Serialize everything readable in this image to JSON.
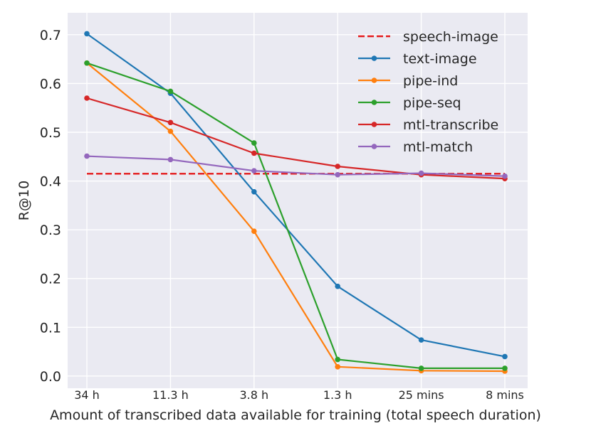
{
  "chart_data": {
    "type": "line",
    "title": "",
    "xlabel": "Amount of transcribed data available for training (total speech duration)",
    "ylabel": "R@10",
    "categories": [
      "34 h",
      "11.3 h",
      "3.8 h",
      "1.3 h",
      "25 mins",
      "8 mins"
    ],
    "ylim": [
      -0.025,
      0.745
    ],
    "yticks": [
      "0.0",
      "0.1",
      "0.2",
      "0.3",
      "0.4",
      "0.5",
      "0.6",
      "0.7"
    ],
    "grid": true,
    "legend_position": "top-right",
    "series": [
      {
        "name": "speech-image",
        "color": "#e41a1c",
        "dashed": true,
        "markers": false,
        "values": [
          0.415,
          0.415,
          0.415,
          0.415,
          0.415,
          0.415
        ]
      },
      {
        "name": "text-image",
        "color": "#1f77b4",
        "dashed": false,
        "markers": true,
        "values": [
          0.702,
          0.58,
          0.378,
          0.184,
          0.074,
          0.04
        ]
      },
      {
        "name": "pipe-ind",
        "color": "#ff7f0e",
        "dashed": false,
        "markers": true,
        "values": [
          0.642,
          0.502,
          0.297,
          0.019,
          0.011,
          0.01
        ]
      },
      {
        "name": "pipe-seq",
        "color": "#2ca02c",
        "dashed": false,
        "markers": true,
        "values": [
          0.642,
          0.584,
          0.478,
          0.034,
          0.016,
          0.016
        ]
      },
      {
        "name": "mtl-transcribe",
        "color": "#d62728",
        "dashed": false,
        "markers": true,
        "values": [
          0.57,
          0.52,
          0.457,
          0.43,
          0.413,
          0.405
        ]
      },
      {
        "name": "mtl-match",
        "color": "#9467bd",
        "dashed": false,
        "markers": true,
        "values": [
          0.451,
          0.444,
          0.421,
          0.413,
          0.416,
          0.41
        ]
      }
    ]
  }
}
